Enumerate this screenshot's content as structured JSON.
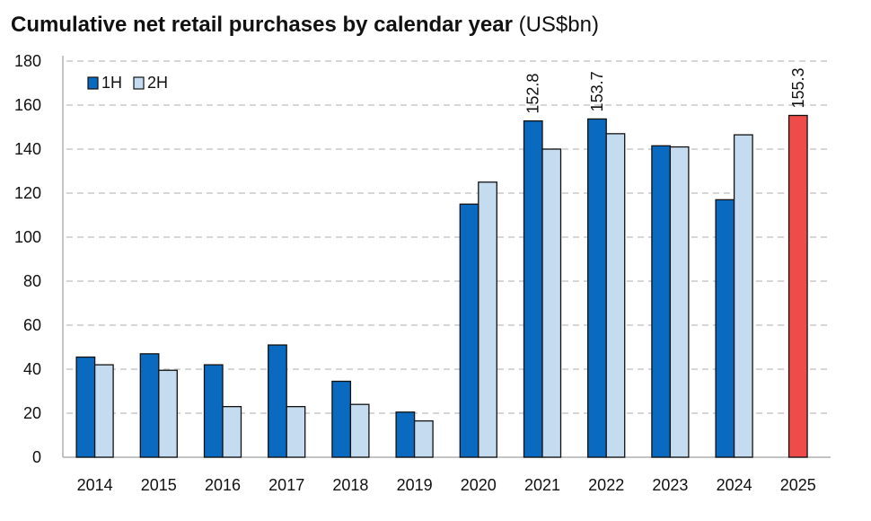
{
  "title_main": "Cumulative net retail purchases by calendar year",
  "title_unit": "(US$bn)",
  "colors": {
    "series_1h": "#0a6abf",
    "series_2h": "#c5dcf0",
    "highlight": "#ef4b4b",
    "outline": "#111111",
    "grid": "#c8c8c8"
  },
  "chart_data": {
    "type": "bar",
    "title": "Cumulative net retail purchases by calendar year (US$bn)",
    "xlabel": "",
    "ylabel": "",
    "ylim": [
      0,
      180
    ],
    "yticks": [
      0,
      20,
      40,
      60,
      80,
      100,
      120,
      140,
      160,
      180
    ],
    "grid": true,
    "legend": "top-left",
    "categories": [
      "2014",
      "2015",
      "2016",
      "2017",
      "2018",
      "2019",
      "2020",
      "2021",
      "2022",
      "2023",
      "2024",
      "2025"
    ],
    "series": [
      {
        "name": "1H",
        "values": [
          45.5,
          47,
          42,
          51,
          34.5,
          20.5,
          115,
          152.8,
          153.7,
          141.5,
          117,
          155.3
        ]
      },
      {
        "name": "2H",
        "values": [
          42,
          39.5,
          23,
          23,
          24,
          16.5,
          125,
          140,
          147,
          141,
          146.5,
          null
        ]
      }
    ],
    "data_labels": [
      {
        "category": "2021",
        "series": "1H",
        "text": "152.8"
      },
      {
        "category": "2022",
        "series": "1H",
        "text": "153.7"
      },
      {
        "category": "2025",
        "series": "1H",
        "text": "155.3"
      }
    ],
    "highlight": {
      "category": "2025",
      "series": "1H"
    }
  }
}
